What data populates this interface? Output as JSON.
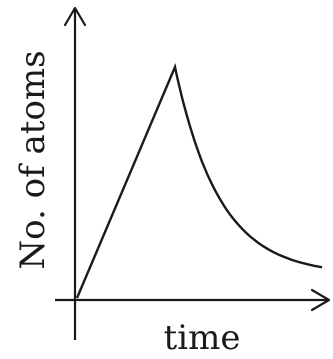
{
  "chart_data": {
    "type": "line",
    "xlabel": "time",
    "ylabel": "No. of atoms",
    "title": "",
    "grid": false,
    "axis_ticks": false,
    "xlim": [
      0,
      10
    ],
    "ylim": [
      0,
      10
    ],
    "series": [
      {
        "segments": [
          {
            "shape": "linear-rise",
            "x": [
              0,
              4
            ],
            "y": [
              0,
              10
            ]
          },
          {
            "shape": "exponential-decay",
            "x": [
              4,
              10
            ],
            "y_start": 10,
            "y_end": 1,
            "rate": 0.55
          }
        ]
      }
    ]
  }
}
